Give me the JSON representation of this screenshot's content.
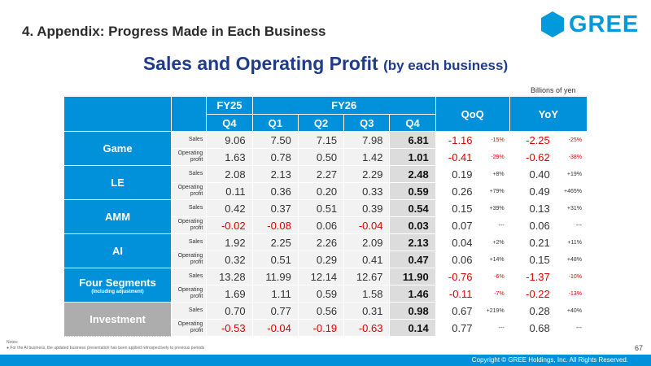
{
  "header": {
    "section_title": "4. Appendix: Progress Made in Each Business",
    "logo_text": "GREE",
    "brand_color": "#0099d9"
  },
  "main_title": "Sales and Operating Profit",
  "main_title_sub": "(by each business)",
  "units": "Billions of yen",
  "table": {
    "fy25": "FY25",
    "fy26": "FY26",
    "qoq": "QoQ",
    "yoy": "YoY",
    "periods": [
      "Q4",
      "Q1",
      "Q2",
      "Q3",
      "Q4"
    ],
    "segments": [
      {
        "name": "Game",
        "sub": "",
        "rows": [
          {
            "label": "Sales",
            "values": [
              "9.06",
              "7.50",
              "7.15",
              "7.98",
              "6.81"
            ],
            "qoq": "-1.16",
            "qoq_pct": "-15%",
            "yoy": "-2.25",
            "yoy_pct": "-25%"
          },
          {
            "label": "Operating profit",
            "values": [
              "1.63",
              "0.78",
              "0.50",
              "1.42",
              "1.01"
            ],
            "qoq": "-0.41",
            "qoq_pct": "-29%",
            "yoy": "-0.62",
            "yoy_pct": "-38%"
          }
        ]
      },
      {
        "name": "LE",
        "sub": "",
        "rows": [
          {
            "label": "Sales",
            "values": [
              "2.08",
              "2.13",
              "2.27",
              "2.29",
              "2.48"
            ],
            "qoq": "0.19",
            "qoq_pct": "+8%",
            "yoy": "0.40",
            "yoy_pct": "+19%"
          },
          {
            "label": "Operating profit",
            "values": [
              "0.11",
              "0.36",
              "0.20",
              "0.33",
              "0.59"
            ],
            "qoq": "0.26",
            "qoq_pct": "+79%",
            "yoy": "0.49",
            "yoy_pct": "+465%"
          }
        ]
      },
      {
        "name": "AMM",
        "sub": "",
        "rows": [
          {
            "label": "Sales",
            "values": [
              "0.42",
              "0.37",
              "0.51",
              "0.39",
              "0.54"
            ],
            "qoq": "0.15",
            "qoq_pct": "+39%",
            "yoy": "0.13",
            "yoy_pct": "+31%"
          },
          {
            "label": "Operating profit",
            "values": [
              "-0.02",
              "-0.08",
              "0.06",
              "-0.04",
              "0.03"
            ],
            "qoq": "0.07",
            "qoq_pct": "---",
            "yoy": "0.06",
            "yoy_pct": "---"
          }
        ]
      },
      {
        "name": "AI",
        "sub": "",
        "rows": [
          {
            "label": "Sales",
            "values": [
              "1.92",
              "2.25",
              "2.26",
              "2.09",
              "2.13"
            ],
            "qoq": "0.04",
            "qoq_pct": "+2%",
            "yoy": "0.21",
            "yoy_pct": "+11%"
          },
          {
            "label": "Operating profit",
            "values": [
              "0.32",
              "0.51",
              "0.29",
              "0.41",
              "0.47"
            ],
            "qoq": "0.06",
            "qoq_pct": "+14%",
            "yoy": "0.15",
            "yoy_pct": "+48%"
          }
        ]
      },
      {
        "name": "Four Segments",
        "sub": "(Including adjustment)",
        "rows": [
          {
            "label": "Sales",
            "values": [
              "13.28",
              "11.99",
              "12.14",
              "12.67",
              "11.90"
            ],
            "qoq": "-0.76",
            "qoq_pct": "-6%",
            "yoy": "-1.37",
            "yoy_pct": "-10%"
          },
          {
            "label": "Operating profit",
            "values": [
              "1.69",
              "1.11",
              "0.59",
              "1.58",
              "1.46"
            ],
            "qoq": "-0.11",
            "qoq_pct": "-7%",
            "yoy": "-0.22",
            "yoy_pct": "-13%"
          }
        ]
      },
      {
        "name": "Investment",
        "sub": "",
        "rows": [
          {
            "label": "Sales",
            "values": [
              "0.70",
              "0.77",
              "0.56",
              "0.31",
              "0.98"
            ],
            "qoq": "0.67",
            "qoq_pct": "+219%",
            "yoy": "0.28",
            "yoy_pct": "+40%"
          },
          {
            "label": "Operating profit",
            "values": [
              "-0.53",
              "-0.04",
              "-0.19",
              "-0.63",
              "0.14"
            ],
            "qoq": "0.77",
            "qoq_pct": "---",
            "yoy": "0.68",
            "yoy_pct": "---"
          }
        ]
      }
    ]
  },
  "notes_label": "Notes:",
  "notes": [
    "For the AI business, the updated business presentation has been applied retrospectively to previous periods"
  ],
  "page_number": "67",
  "copyright": "Copyright © GREE Holdings, Inc. All Rights Reserved.",
  "colors": {
    "header_blue": "#0091da",
    "negative_red": "#e00000",
    "investment_gray": "#adadad",
    "title_navy": "#1f3c8a"
  }
}
